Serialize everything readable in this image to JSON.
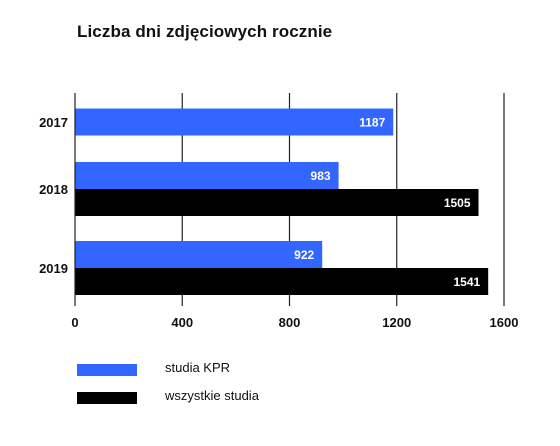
{
  "chart_data": {
    "type": "bar",
    "orientation": "horizontal",
    "title": "Liczba dni zdjęciowych rocznie",
    "categories": [
      "2017",
      "2018",
      "2019"
    ],
    "series": [
      {
        "name": "studia KPR",
        "color": "#3366ff",
        "values": [
          1187,
          983,
          922
        ]
      },
      {
        "name": "wszystkie studia",
        "color": "#000000",
        "values": [
          null,
          1505,
          1541
        ]
      }
    ],
    "xlim": [
      0,
      1600
    ],
    "xticks": [
      "0",
      "400",
      "800",
      "1200",
      "1600"
    ],
    "grid": true,
    "legend_position": "bottom-left",
    "data_labels": true
  }
}
